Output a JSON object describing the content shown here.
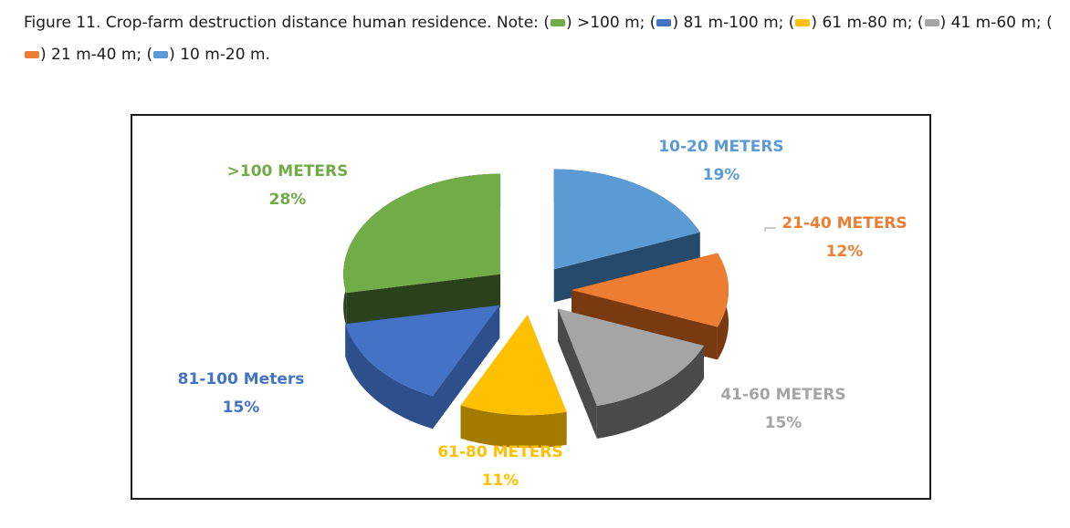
{
  "caption": {
    "figure_label": "Figure 11.",
    "text": " Crop-farm destruction distance human residence. ",
    "note_label": "Note:",
    "legend": [
      {
        "text": ">100 m;",
        "color": "#70ad47"
      },
      {
        "text": "81 m-100 m;",
        "color": "#4472c4"
      },
      {
        "text": "61 m-80 m;",
        "color": "#ffc000"
      },
      {
        "text": "41 m-60 m;",
        "color": "#a5a5a5"
      },
      {
        "text": "21 m-40 m;",
        "color": "#ed7d31"
      },
      {
        "text": "10 m-20 m.",
        "color": "#5b9bd5"
      }
    ]
  },
  "chart_data": {
    "type": "pie",
    "style": "3d-exploded",
    "slices": [
      {
        "label": "10-20 METERS",
        "value": 19,
        "value_label": "19%",
        "color": "#5b9bd5",
        "side_color": "#264a6b"
      },
      {
        "label": "21-40 METERS",
        "value": 12,
        "value_label": "12%",
        "color": "#ed7d31",
        "side_color": "#7a3a10"
      },
      {
        "label": "41-60 METERS",
        "value": 15,
        "value_label": "15%",
        "color": "#a5a5a5",
        "side_color": "#4a4a4a"
      },
      {
        "label": "61-80 METERS",
        "value": 11,
        "value_label": "11%",
        "color": "#ffc000",
        "side_color": "#a47a00"
      },
      {
        "label": "81-100 Meters",
        "value": 15,
        "value_label": "15%",
        "color": "#4472c4",
        "side_color": "#2d4f8c"
      },
      {
        "label": ">100 METERS",
        "value": 28,
        "value_label": "28%",
        "color": "#70ad47",
        "side_color": "#2a421b"
      }
    ]
  }
}
